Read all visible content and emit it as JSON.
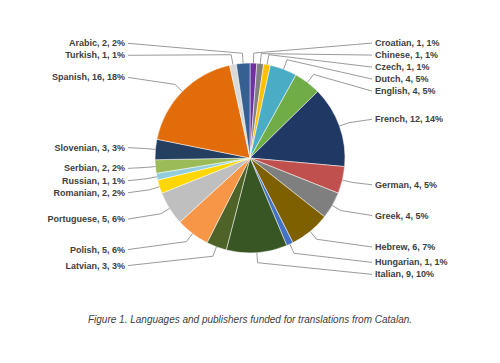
{
  "chart_data": {
    "type": "pie",
    "title": "Figure 1. Languages and publishers funded for translations from Catalan.",
    "categories": [
      "Croatian",
      "Chinese",
      "Czech",
      "Dutch",
      "English",
      "French",
      "German",
      "Greek",
      "Hebrew",
      "Hungarian",
      "Italian",
      "Latvian",
      "Polish",
      "Portuguese",
      "Romanian",
      "Russian",
      "Serbian",
      "Slovenian",
      "Spanish",
      "Turkish",
      "Arabic"
    ],
    "values": [
      1,
      1,
      1,
      4,
      4,
      12,
      4,
      4,
      6,
      1,
      9,
      3,
      5,
      5,
      2,
      1,
      2,
      3,
      16,
      1,
      2
    ],
    "value_labels": [
      "Croatian, 1, 1%",
      "Chinese, 1, 1%",
      "Czech, 1, 1%",
      "Dutch, 4, 5%",
      "English, 4, 5%",
      "French, 12, 14%",
      "German, 4, 5%",
      "Greek, 4, 5%",
      "Hebrew, 6, 7%",
      "Hungarian, 1, 1%",
      "Italian, 9, 10%",
      "Latvian, 3, 3%",
      "Polish, 5, 6%",
      "Portuguese, 5, 6%",
      "Romanian, 2, 2%",
      "Russian, 1, 1%",
      "Serbian, 2, 2%",
      "Slovenian, 3, 3%",
      "Spanish, 16, 18%",
      "Turkish, 1, 1%",
      "Arabic, 2, 2%"
    ],
    "colors": [
      "#7030a0",
      "#808080",
      "#ffc000",
      "#4bacc6",
      "#70ad47",
      "#1f3864",
      "#c0504d",
      "#7f7f7f",
      "#7f6000",
      "#4472c4",
      "#375623",
      "#4f6228",
      "#f79646",
      "#bfbfbf",
      "#ffd700",
      "#92cddc",
      "#9bbb59",
      "#243f60",
      "#e26b0a",
      "#d9d9d9",
      "#376092"
    ],
    "data_labels": true
  }
}
